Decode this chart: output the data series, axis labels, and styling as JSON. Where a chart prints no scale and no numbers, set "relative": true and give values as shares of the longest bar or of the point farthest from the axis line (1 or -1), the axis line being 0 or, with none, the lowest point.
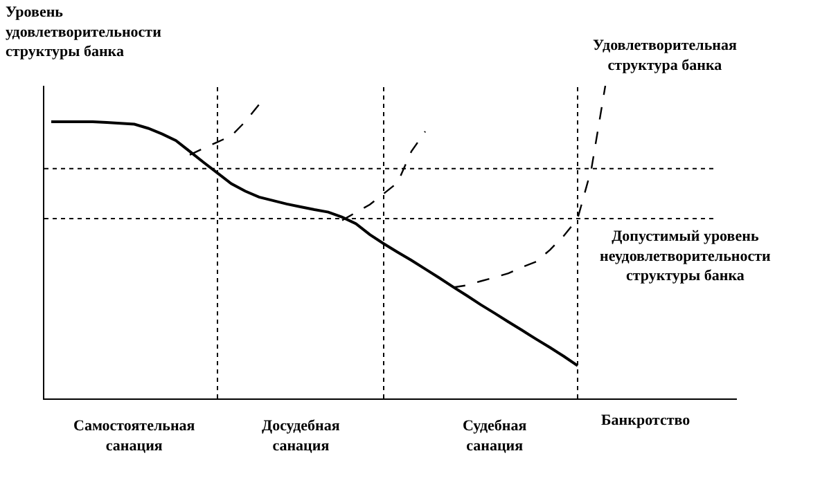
{
  "chart_data": {
    "type": "line",
    "relative": true,
    "ylabel": "Уровень удовлетворительности структуры банка",
    "categories": [
      null,
      null,
      null,
      null,
      null,
      null,
      null,
      null,
      null,
      null,
      null,
      null,
      null,
      null,
      null,
      null,
      null,
      null,
      null,
      null,
      null,
      null,
      null,
      null,
      null,
      null,
      null,
      null,
      null,
      null,
      null,
      null,
      null,
      null,
      null,
      null,
      null,
      null,
      null,
      null,
      null,
      null,
      null,
      null,
      null,
      null,
      null,
      null,
      null,
      null
    ],
    "series": [
      {
        "color": "#000000",
        "line_style": "solid",
        "values": [
          0.885,
          0.885,
          0.885,
          0.885,
          0.883,
          0.88,
          0.877,
          0.864,
          0.846,
          0.825,
          0.79,
          0.755,
          0.721,
          0.687,
          0.663,
          0.644,
          0.633,
          0.622,
          0.613,
          0.604,
          0.596,
          0.58,
          0.559,
          0.524,
          0.495,
          0.468,
          0.442,
          0.414,
          0.386,
          0.357,
          0.329,
          0.3,
          0.273,
          0.245,
          0.218,
          0.19,
          0.163,
          0.135,
          0.105,
          null,
          null,
          null,
          null,
          null,
          null,
          null,
          null,
          null,
          null,
          null
        ]
      },
      {
        "color": "#000000",
        "line_style": "dashed",
        "values": [
          null,
          null,
          null,
          null,
          null,
          null,
          null,
          null,
          null,
          null,
          0.779,
          0.8,
          0.82,
          0.84,
          0.885,
          0.94,
          null,
          null,
          null,
          null,
          null,
          null,
          null,
          null,
          null,
          null,
          null,
          null,
          null,
          null,
          null,
          null,
          null,
          null,
          null,
          null,
          null,
          null,
          null,
          null,
          null,
          null,
          null,
          null,
          null,
          null,
          null,
          null,
          null,
          null
        ]
      },
      {
        "color": "#000000",
        "line_style": "dashed",
        "values": [
          null,
          null,
          null,
          null,
          null,
          null,
          null,
          null,
          null,
          null,
          null,
          null,
          null,
          null,
          null,
          null,
          null,
          null,
          null,
          null,
          null,
          0.57,
          0.595,
          0.62,
          0.655,
          0.69,
          0.79,
          0.854,
          null,
          null,
          null,
          null,
          null,
          null,
          null,
          null,
          null,
          null,
          null,
          null,
          null,
          null,
          null,
          null,
          null,
          null,
          null,
          null,
          null,
          null
        ]
      },
      {
        "color": "#000000",
        "line_style": "dashed",
        "values": [
          null,
          null,
          null,
          null,
          null,
          null,
          null,
          null,
          null,
          null,
          null,
          null,
          null,
          null,
          null,
          null,
          null,
          null,
          null,
          null,
          null,
          null,
          null,
          null,
          null,
          null,
          null,
          null,
          null,
          0.355,
          0.362,
          0.375,
          0.387,
          0.4,
          0.42,
          0.437,
          0.475,
          0.52,
          0.575,
          0.735,
          1,
          null,
          null,
          null,
          null,
          null,
          null,
          null,
          null,
          null
        ]
      }
    ],
    "ref_lines": [
      {
        "axis": "y",
        "value": 0.735,
        "color": "#000000",
        "line_style": "dotted"
      },
      {
        "axis": "y",
        "value": 0.575,
        "color": "#000000",
        "line_style": "dotted"
      }
    ],
    "annotations": [
      "Самостоятельная санация",
      "Досудебная санация",
      "Судебная санация",
      "Банкротство",
      "Удовлетворительная структура банка",
      "Допустимый уровень неудовлетворительности структуры банка"
    ],
    "grid": "x",
    "marker": "none"
  }
}
